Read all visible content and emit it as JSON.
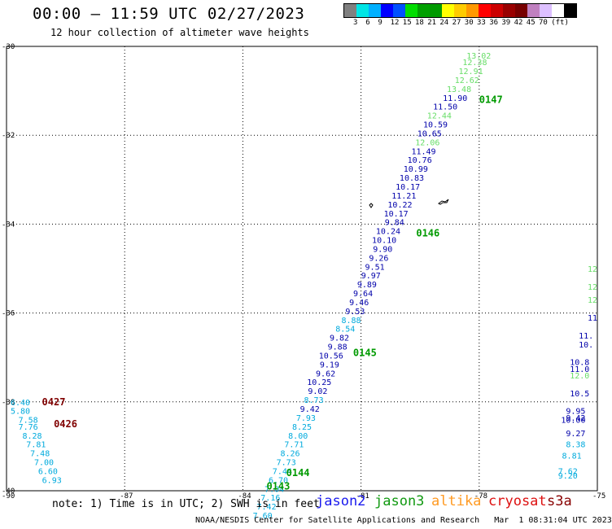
{
  "header": {
    "title": "00:00 – 11:59 UTC 02/27/2023",
    "subtitle": "12 hour collection of altimeter wave heights"
  },
  "legend": {
    "colors": [
      "#808080",
      "#00e5e5",
      "#00b0ff",
      "#0000ff",
      "#0050ff",
      "#00dd00",
      "#00a000",
      "#009a00",
      "#ffff00",
      "#ffcc00",
      "#ff9900",
      "#ff0000",
      "#cc0000",
      "#990000",
      "#770000",
      "#c080c0",
      "#ddc0ff",
      "#ffffff",
      "#000000"
    ],
    "labels": [
      "3",
      "6",
      "9",
      "12",
      "15",
      "18",
      "21",
      "24",
      "27",
      "30",
      "33",
      "36",
      "39",
      "42",
      "45",
      "70",
      "(ft)"
    ]
  },
  "map": {
    "lat_labels": [
      "-30",
      "-32",
      "-34",
      "-36",
      "-38",
      "-40"
    ],
    "lon_labels": [
      "-90",
      "-87",
      "-84",
      "-81",
      "-78",
      "-75"
    ],
    "passes": [
      {
        "label": "0147",
        "lon": -78.0,
        "lat": -31.2,
        "color": "#009a00"
      },
      {
        "label": "0146",
        "lon": -79.6,
        "lat": -34.2,
        "color": "#009a00"
      },
      {
        "label": "0145",
        "lon": -81.2,
        "lat": -36.9,
        "color": "#009a00"
      },
      {
        "label": "0144",
        "lon": -82.9,
        "lat": -39.6,
        "color": "#009a00"
      },
      {
        "label": "0143",
        "lon": -83.4,
        "lat": -39.9,
        "color": "#009a00"
      },
      {
        "label": "0427",
        "lon": -89.1,
        "lat": -38.0,
        "color": "#800000"
      },
      {
        "label": "0426",
        "lon": -88.8,
        "lat": -38.5,
        "color": "#800000"
      }
    ],
    "track_a": [
      {
        "v": "13.02",
        "lon": -77.7,
        "lat": -30.2,
        "c": "#66dd66"
      },
      {
        "v": "12.38",
        "lon": -77.8,
        "lat": -30.35,
        "c": "#66dd66"
      },
      {
        "v": "12.91",
        "lon": -77.9,
        "lat": -30.55,
        "c": "#66dd66"
      },
      {
        "v": "12.62",
        "lon": -78.0,
        "lat": -30.75,
        "c": "#66dd66"
      },
      {
        "v": "13.48",
        "lon": -78.2,
        "lat": -30.95,
        "c": "#66dd66"
      },
      {
        "v": "11.90",
        "lon": -78.3,
        "lat": -31.15,
        "c": "#0000aa"
      },
      {
        "v": "11.50",
        "lon": -78.55,
        "lat": -31.35,
        "c": "#0000aa"
      },
      {
        "v": "12.44",
        "lon": -78.7,
        "lat": -31.55,
        "c": "#66dd66"
      },
      {
        "v": "10.59",
        "lon": -78.8,
        "lat": -31.75,
        "c": "#0000aa"
      },
      {
        "v": "10.65",
        "lon": -78.95,
        "lat": -31.95,
        "c": "#0000aa"
      },
      {
        "v": "12.06",
        "lon": -79.0,
        "lat": -32.15,
        "c": "#66dd66"
      },
      {
        "v": "11.49",
        "lon": -79.1,
        "lat": -32.35,
        "c": "#0000aa"
      },
      {
        "v": "10.76",
        "lon": -79.2,
        "lat": -32.55,
        "c": "#0000aa"
      },
      {
        "v": "10.99",
        "lon": -79.3,
        "lat": -32.75,
        "c": "#0000aa"
      },
      {
        "v": "10.83",
        "lon": -79.4,
        "lat": -32.95,
        "c": "#0000aa"
      },
      {
        "v": "10.17",
        "lon": -79.5,
        "lat": -33.15,
        "c": "#0000aa"
      },
      {
        "v": "11.21",
        "lon": -79.6,
        "lat": -33.35,
        "c": "#0000aa"
      },
      {
        "v": "10.22",
        "lon": -79.7,
        "lat": -33.55,
        "c": "#0000aa"
      },
      {
        "v": "10.17",
        "lon": -79.8,
        "lat": -33.75,
        "c": "#0000aa"
      },
      {
        "v": "9.84",
        "lon": -79.9,
        "lat": -33.95,
        "c": "#0000aa"
      },
      {
        "v": "10.24",
        "lon": -80.0,
        "lat": -34.15,
        "c": "#0000aa"
      },
      {
        "v": "10.10",
        "lon": -80.1,
        "lat": -34.35,
        "c": "#0000aa"
      },
      {
        "v": "9.90",
        "lon": -80.2,
        "lat": -34.55,
        "c": "#0000aa"
      },
      {
        "v": "9.26",
        "lon": -80.3,
        "lat": -34.75,
        "c": "#0000aa"
      },
      {
        "v": "9.51",
        "lon": -80.4,
        "lat": -34.95,
        "c": "#0000aa"
      },
      {
        "v": "9.97",
        "lon": -80.5,
        "lat": -35.15,
        "c": "#0000aa"
      },
      {
        "v": "9.89",
        "lon": -80.6,
        "lat": -35.35,
        "c": "#0000aa"
      },
      {
        "v": "9.64",
        "lon": -80.7,
        "lat": -35.55,
        "c": "#0000aa"
      },
      {
        "v": "9.46",
        "lon": -80.8,
        "lat": -35.75,
        "c": "#0000aa"
      },
      {
        "v": "9.53",
        "lon": -80.9,
        "lat": -35.95,
        "c": "#0000aa"
      },
      {
        "v": "8.88",
        "lon": -81.0,
        "lat": -36.15,
        "c": "#00aadd"
      },
      {
        "v": "8.54",
        "lon": -81.15,
        "lat": -36.35,
        "c": "#00aadd"
      },
      {
        "v": "9.82",
        "lon": -81.3,
        "lat": -36.55,
        "c": "#0000aa"
      },
      {
        "v": "9.88",
        "lon": -81.35,
        "lat": -36.75,
        "c": "#0000aa"
      },
      {
        "v": "10.56",
        "lon": -81.45,
        "lat": -36.95,
        "c": "#0000aa"
      },
      {
        "v": "9.19",
        "lon": -81.55,
        "lat": -37.15,
        "c": "#0000aa"
      },
      {
        "v": "9.62",
        "lon": -81.65,
        "lat": -37.35,
        "c": "#0000aa"
      },
      {
        "v": "10.25",
        "lon": -81.75,
        "lat": -37.55,
        "c": "#0000aa"
      },
      {
        "v": "9.02",
        "lon": -81.85,
        "lat": -37.75,
        "c": "#0000aa"
      },
      {
        "v": "8.73",
        "lon": -81.95,
        "lat": -37.95,
        "c": "#00aadd"
      },
      {
        "v": "9.42",
        "lon": -82.05,
        "lat": -38.15,
        "c": "#0000aa"
      },
      {
        "v": "7.93",
        "lon": -82.15,
        "lat": -38.35,
        "c": "#00aadd"
      },
      {
        "v": "8.25",
        "lon": -82.25,
        "lat": -38.55,
        "c": "#00aadd"
      },
      {
        "v": "8.00",
        "lon": -82.35,
        "lat": -38.75,
        "c": "#00aadd"
      },
      {
        "v": "7.71",
        "lon": -82.45,
        "lat": -38.95,
        "c": "#00aadd"
      },
      {
        "v": "8.26",
        "lon": -82.55,
        "lat": -39.15,
        "c": "#00aadd"
      },
      {
        "v": "7.73",
        "lon": -82.65,
        "lat": -39.35,
        "c": "#00aadd"
      },
      {
        "v": "7.44",
        "lon": -82.75,
        "lat": -39.55,
        "c": "#00aadd"
      },
      {
        "v": "6.70",
        "lon": -82.85,
        "lat": -39.75,
        "c": "#00aadd"
      },
      {
        "v": "7.04",
        "lon": -82.95,
        "lat": -39.95,
        "c": "#00aadd"
      },
      {
        "v": "7.16",
        "lon": -83.05,
        "lat": -40.15,
        "c": "#00aadd"
      },
      {
        "v": "7.42",
        "lon": -83.15,
        "lat": -40.35,
        "c": "#00aadd"
      },
      {
        "v": "7.60",
        "lon": -83.25,
        "lat": -40.55,
        "c": "#00aadd"
      }
    ],
    "track_b": [
      {
        "v": "6.40",
        "lon": -89.4,
        "lat": -38.0
      },
      {
        "v": "5.80",
        "lon": -89.4,
        "lat": -38.2
      },
      {
        "v": "7.58",
        "lon": -89.2,
        "lat": -38.4
      },
      {
        "v": "7.76",
        "lon": -89.2,
        "lat": -38.55
      },
      {
        "v": "8.28",
        "lon": -89.1,
        "lat": -38.75
      },
      {
        "v": "7.81",
        "lon": -89.0,
        "lat": -38.95
      },
      {
        "v": "7.48",
        "lon": -88.9,
        "lat": -39.15
      },
      {
        "v": "7.00",
        "lon": -88.8,
        "lat": -39.35
      },
      {
        "v": "6.60",
        "lon": -88.7,
        "lat": -39.55
      },
      {
        "v": "6.93",
        "lon": -88.6,
        "lat": -39.75
      }
    ],
    "track_c": [
      {
        "v": "12",
        "lon": -75.0,
        "lat": -35.0,
        "c": "#66dd66"
      },
      {
        "v": "12",
        "lon": -75.0,
        "lat": -35.4,
        "c": "#66dd66"
      },
      {
        "v": "12",
        "lon": -75.0,
        "lat": -35.7,
        "c": "#66dd66"
      },
      {
        "v": "11",
        "lon": -75.0,
        "lat": -36.1,
        "c": "#0000aa"
      },
      {
        "v": "11.",
        "lon": -75.1,
        "lat": -36.5,
        "c": "#0000aa"
      },
      {
        "v": "10.",
        "lon": -75.1,
        "lat": -36.7,
        "c": "#0000aa"
      },
      {
        "v": "10.8",
        "lon": -75.2,
        "lat": -37.1,
        "c": "#0000aa"
      },
      {
        "v": "11.0",
        "lon": -75.2,
        "lat": -37.25,
        "c": "#0000aa"
      },
      {
        "v": "12.0",
        "lon": -75.2,
        "lat": -37.4,
        "c": "#66dd66"
      },
      {
        "v": "10.5",
        "lon": -75.2,
        "lat": -37.8,
        "c": "#0000aa"
      },
      {
        "v": "9.95",
        "lon": -75.3,
        "lat": -38.2,
        "c": "#0000aa"
      },
      {
        "v": "9.42",
        "lon": -75.3,
        "lat": -38.35,
        "c": "#0000aa"
      },
      {
        "v": "10.00",
        "lon": -75.3,
        "lat": -38.4,
        "c": "#0000aa"
      },
      {
        "v": "9.27",
        "lon": -75.3,
        "lat": -38.7,
        "c": "#0000aa"
      },
      {
        "v": "8.38",
        "lon": -75.3,
        "lat": -38.95,
        "c": "#00aadd"
      },
      {
        "v": "8.81",
        "lon": -75.4,
        "lat": -39.2,
        "c": "#00aadd"
      },
      {
        "v": "7.62",
        "lon": -75.5,
        "lat": -39.55,
        "c": "#00aadd"
      },
      {
        "v": "9.20",
        "lon": -75.5,
        "lat": -39.65,
        "c": "#00aadd"
      }
    ]
  },
  "satellites": [
    {
      "name": "jason2",
      "color": "#1a1aee"
    },
    {
      "name": "jason3",
      "color": "#119911"
    },
    {
      "name": "altika",
      "color": "#ff9a22"
    },
    {
      "name": "cryosat",
      "color": "#dd1111"
    },
    {
      "name": "s3a",
      "color": "#880000"
    }
  ],
  "footer": {
    "note": "note: 1) Time is in UTC; 2) SWH is in feet",
    "credit": "NOAA/NESDIS Center for Satellite Applications and Research   Mar  1 08:31:04 UTC 2023"
  }
}
